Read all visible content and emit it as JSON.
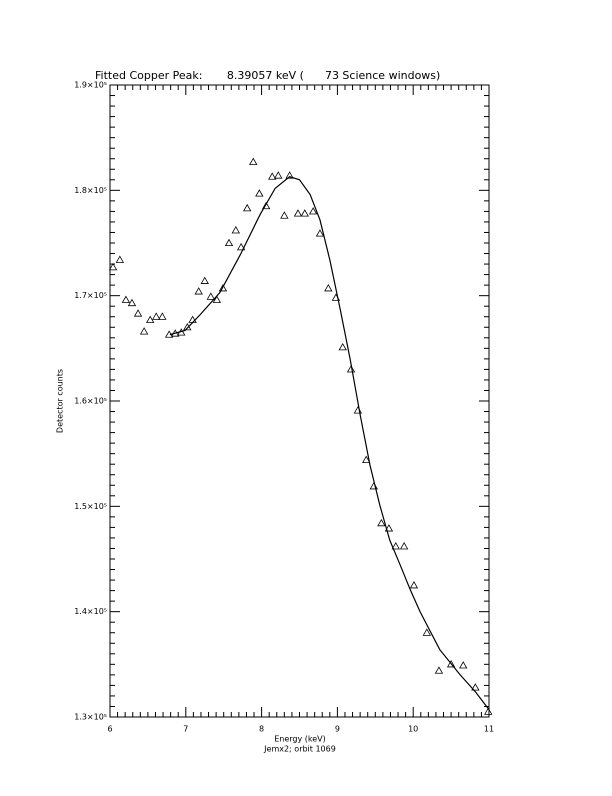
{
  "chart_data": {
    "type": "scatter",
    "title": "Fitted Copper Peak:       8.39057 keV (      73 Science windows)",
    "x_label": "Energy (keV)",
    "subtitle": "Jemx2; orbit 1069",
    "y_label": "Detector counts",
    "xlim": [
      6,
      11
    ],
    "xticks": [
      6,
      7,
      8,
      9,
      10,
      11
    ],
    "ylim": [
      130000,
      190000
    ],
    "yticks": [
      {
        "value": 130000,
        "label": "1.3×10⁵"
      },
      {
        "value": 140000,
        "label": "1.4×10⁵"
      },
      {
        "value": 150000,
        "label": "1.5×10⁵"
      },
      {
        "value": 160000,
        "label": "1.6×10⁵"
      },
      {
        "value": 170000,
        "label": "1.7×10⁵"
      },
      {
        "value": 180000,
        "label": "1.8×10⁵"
      },
      {
        "value": 190000,
        "label": "1.9×10⁵"
      }
    ],
    "minor_ticks_per_interval": 10,
    "grid": false,
    "series": [
      {
        "mode": "markers",
        "marker": "triangle",
        "color": "#000000",
        "x": [
          6.04,
          6.13,
          6.21,
          6.29,
          6.37,
          6.45,
          6.53,
          6.61,
          6.69,
          6.78,
          6.86,
          6.94,
          7.02,
          7.09,
          7.17,
          7.25,
          7.33,
          7.41,
          7.49,
          7.57,
          7.66,
          7.73,
          7.81,
          7.89,
          7.97,
          8.06,
          8.14,
          8.22,
          8.3,
          8.37,
          8.48,
          8.57,
          8.68,
          8.77,
          8.88,
          8.98,
          9.07,
          9.18,
          9.27,
          9.38,
          9.48,
          9.58,
          9.68,
          9.77,
          9.88,
          10.01,
          10.18,
          10.34,
          10.5,
          10.66,
          10.82,
          10.99
        ],
        "values": [
          172700,
          173400,
          169600,
          169300,
          168300,
          166600,
          167700,
          168000,
          168000,
          166300,
          166400,
          166500,
          167000,
          167700,
          170400,
          171400,
          169900,
          169600,
          170700,
          175000,
          176200,
          174600,
          178300,
          182700,
          179700,
          178500,
          181300,
          181400,
          177600,
          181400,
          177800,
          177800,
          178000,
          175900,
          170700,
          169800,
          165100,
          163000,
          159100,
          154400,
          151900,
          148400,
          147900,
          146200,
          146200,
          142500,
          138000,
          134400,
          135000,
          134900,
          132800,
          130500
        ]
      },
      {
        "mode": "line",
        "color": "#000000",
        "x": [
          6.79,
          6.99,
          7.19,
          7.45,
          7.72,
          7.98,
          8.18,
          8.37,
          8.5,
          8.64,
          8.77,
          8.9,
          9.04,
          9.17,
          9.3,
          9.43,
          9.56,
          9.69,
          9.83,
          9.96,
          10.09,
          10.35,
          10.62,
          10.82,
          11.0
        ],
        "values": [
          166300,
          166700,
          168200,
          170300,
          173900,
          177700,
          180200,
          181300,
          181000,
          179600,
          177200,
          173400,
          168600,
          163900,
          158700,
          153900,
          150100,
          146800,
          144400,
          142100,
          140000,
          136400,
          134000,
          132400,
          130700
        ]
      }
    ]
  }
}
